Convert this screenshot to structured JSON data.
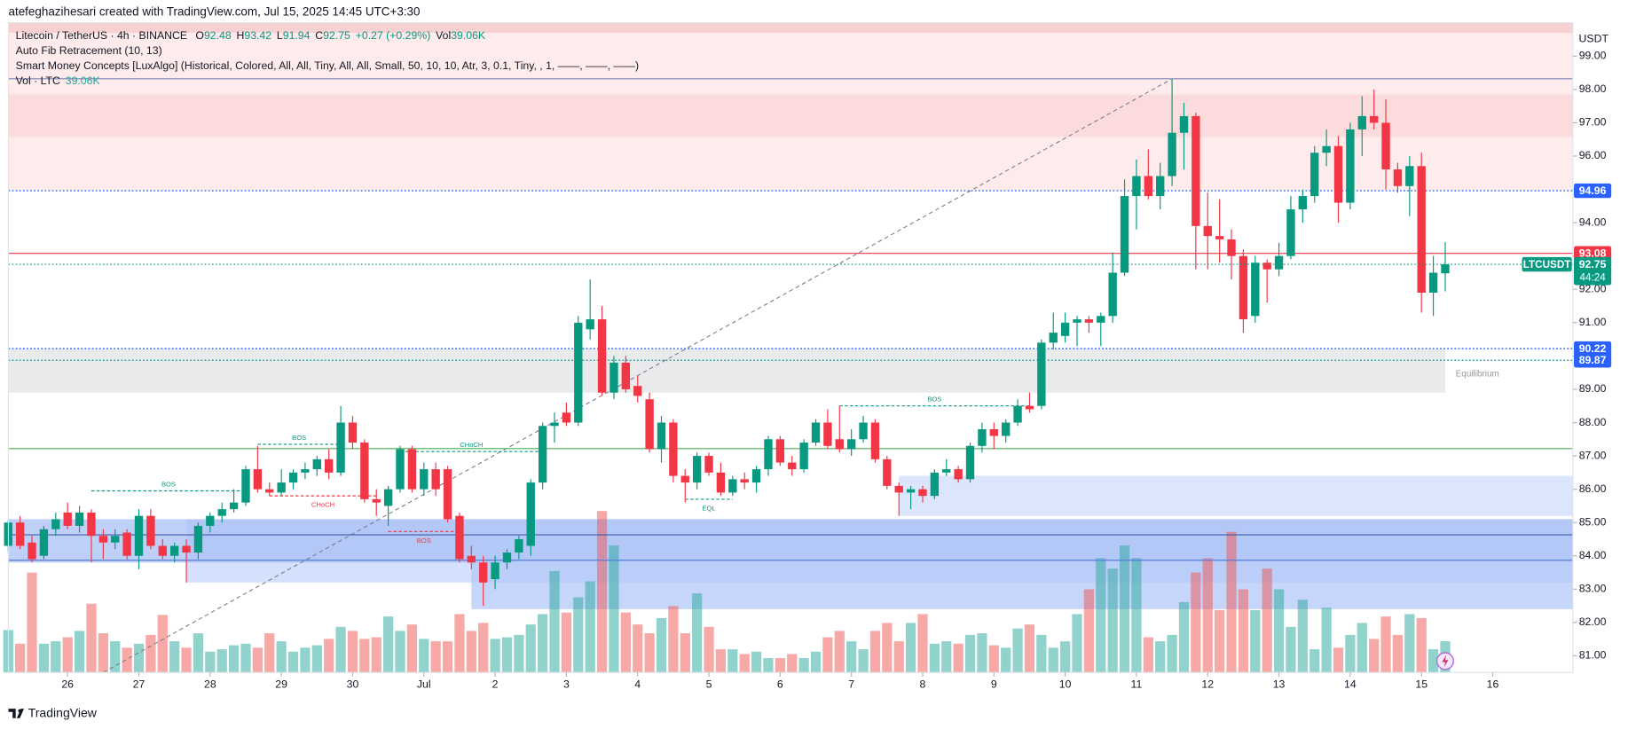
{
  "chart_data": {
    "type": "candlestick",
    "credit": "atefeghazihesari created with TradingView.com, Jul 15, 2025 14:45 UTC+3:30",
    "symbol_title": "Litecoin / TetherUS · 4h · BINANCE",
    "ohlc_letters": [
      "O",
      "H",
      "L",
      "C"
    ],
    "change": "+0.27 (+0.29%)",
    "vol_word": "Vol",
    "volume_label": "39.06K",
    "indicators": [
      "Auto Fib Retracement (10, 13)",
      "Smart Money Concepts [LuxAlgo] (Historical, Colored, All, All, Tiny, All, All, Small, 50, 10, 10, Atr, 3, 0.1, Tiny, , 1, ——, ——, ——)"
    ],
    "volume_legend": "Vol · LTC",
    "currency": "USDT",
    "symbol": "LTCUSDT",
    "countdown": "44:24",
    "footer": "TradingView",
    "up_color": "#089981",
    "down_color": "#f23645",
    "volume_up_color": "#26a69a",
    "volume_down_color": "#ef5350",
    "grid": false,
    "ylim": [
      80.5,
      100
    ],
    "yticks": [
      {
        "value": 81,
        "label": "81.00"
      },
      {
        "value": 82,
        "label": "82.00"
      },
      {
        "value": 83,
        "label": "83.00"
      },
      {
        "value": 84,
        "label": "84.00"
      },
      {
        "value": 85,
        "label": "85.00"
      },
      {
        "value": 86,
        "label": "86.00"
      },
      {
        "value": 87,
        "label": "87.00"
      },
      {
        "value": 88,
        "label": "88.00"
      },
      {
        "value": 89,
        "label": "89.00"
      },
      {
        "value": 90,
        "label": "90.00"
      },
      {
        "value": 91,
        "label": "91.00"
      },
      {
        "value": 92,
        "label": "92.00"
      },
      {
        "value": 93,
        "label": "93.00"
      },
      {
        "value": 94,
        "label": "94.00"
      },
      {
        "value": 95,
        "label": "95.00"
      },
      {
        "value": 96,
        "label": "96.00"
      },
      {
        "value": 97,
        "label": "97.00"
      },
      {
        "value": 98,
        "label": "98.00"
      },
      {
        "value": 99,
        "label": "99.00"
      }
    ],
    "xticks": [
      {
        "value": 5,
        "label": "26"
      },
      {
        "value": 11,
        "label": "27"
      },
      {
        "value": 17,
        "label": "28"
      },
      {
        "value": 23,
        "label": "29"
      },
      {
        "value": 29,
        "label": "30"
      },
      {
        "value": 35,
        "label": "Jul"
      },
      {
        "value": 41,
        "label": "2"
      },
      {
        "value": 47,
        "label": "3"
      },
      {
        "value": 53,
        "label": "4"
      },
      {
        "value": 59,
        "label": "5"
      },
      {
        "value": 65,
        "label": "6"
      },
      {
        "value": 71,
        "label": "7"
      },
      {
        "value": 77,
        "label": "8"
      },
      {
        "value": 83,
        "label": "9"
      },
      {
        "value": 89,
        "label": "10"
      },
      {
        "value": 95,
        "label": "11"
      },
      {
        "value": 101,
        "label": "12"
      },
      {
        "value": 107,
        "label": "13"
      },
      {
        "value": 113,
        "label": "14"
      },
      {
        "value": 119,
        "label": "15"
      },
      {
        "value": 125,
        "label": "16"
      }
    ],
    "open": [
      84.3,
      85.0,
      84.4,
      84.0,
      84.8,
      85.3,
      84.9,
      85.3,
      84.6,
      84.4,
      84.7,
      84.0,
      85.2,
      84.3,
      84.0,
      84.3,
      84.1,
      84.9,
      85.2,
      85.4,
      85.6,
      86.6,
      86.0,
      85.9,
      86.2,
      86.5,
      86.6,
      86.9,
      86.5,
      88.0,
      87.4,
      85.7,
      85.5,
      86.0,
      87.2,
      86.0,
      86.6,
      86.6,
      85.2,
      84.0,
      83.8,
      83.3,
      83.8,
      84.1,
      84.3,
      86.2,
      87.9,
      88.3,
      88.0,
      90.8,
      91.1,
      88.9,
      89.8,
      89.1,
      88.7,
      87.2,
      88.0,
      86.4,
      86.2,
      87.0,
      86.5,
      85.9,
      86.3,
      86.2,
      86.6,
      87.5,
      86.8,
      86.6,
      87.4,
      88.0,
      87.5,
      87.2,
      87.5,
      88.0,
      86.9,
      86.1,
      85.9,
      86.0,
      85.8,
      86.5,
      86.6,
      86.3,
      87.3,
      87.8,
      87.6,
      88.0,
      88.5,
      88.5,
      90.4,
      90.6,
      91.0,
      91.1,
      91.0,
      91.2,
      92.5,
      94.8,
      95.4,
      94.8,
      95.4,
      96.7,
      97.2,
      93.9,
      93.6,
      93.5,
      93.0,
      91.2,
      92.8,
      92.6,
      93.0,
      94.4,
      94.8,
      96.1,
      96.3,
      94.6,
      96.8,
      97.2,
      97.0,
      95.6,
      95.1,
      95.7,
      91.9,
      92.48
    ],
    "high": [
      85.1,
      85.2,
      84.6,
      84.9,
      85.3,
      85.6,
      85.5,
      85.4,
      84.8,
      84.8,
      84.8,
      85.4,
      85.4,
      84.5,
      84.4,
      84.5,
      85.0,
      85.3,
      85.6,
      86.0,
      86.7,
      87.3,
      86.2,
      86.6,
      86.6,
      86.8,
      87.0,
      87.2,
      88.5,
      88.2,
      87.5,
      86.0,
      86.1,
      87.3,
      87.3,
      86.8,
      86.8,
      86.7,
      85.3,
      84.3,
      84.0,
      84.0,
      84.2,
      84.6,
      86.3,
      88.0,
      88.3,
      88.6,
      91.2,
      92.3,
      91.5,
      90.0,
      90.0,
      89.4,
      88.9,
      88.2,
      88.1,
      86.6,
      87.1,
      87.1,
      86.8,
      86.4,
      86.5,
      86.7,
      87.6,
      87.6,
      87.0,
      87.5,
      88.1,
      88.4,
      88.5,
      87.8,
      88.2,
      88.1,
      87.0,
      86.2,
      86.1,
      86.1,
      86.6,
      86.9,
      86.7,
      87.4,
      88.0,
      88.0,
      88.1,
      88.7,
      88.9,
      90.5,
      91.3,
      91.3,
      91.2,
      91.2,
      91.3,
      93.1,
      95.3,
      95.9,
      96.2,
      95.8,
      98.3,
      97.6,
      97.3,
      94.9,
      94.7,
      93.8,
      93.2,
      93.0,
      92.9,
      93.4,
      94.8,
      95.0,
      96.3,
      96.8,
      96.6,
      97.0,
      97.8,
      98.0,
      97.7,
      95.8,
      96.0,
      96.1,
      93.0,
      93.42
    ],
    "low": [
      84.1,
      84.2,
      83.8,
      83.9,
      84.6,
      84.8,
      84.7,
      83.8,
      83.9,
      84.2,
      83.9,
      83.6,
      84.2,
      83.9,
      83.8,
      83.2,
      83.9,
      84.7,
      85.0,
      85.3,
      85.5,
      85.9,
      85.8,
      85.8,
      86.0,
      86.3,
      86.4,
      86.3,
      86.4,
      87.2,
      85.6,
      85.2,
      84.9,
      85.9,
      85.9,
      85.8,
      85.8,
      85.0,
      83.8,
      83.6,
      82.5,
      83.0,
      83.6,
      83.9,
      84.0,
      86.0,
      87.4,
      87.9,
      87.9,
      90.5,
      88.8,
      88.7,
      88.9,
      88.6,
      87.1,
      86.8,
      86.2,
      85.6,
      86.0,
      86.4,
      85.8,
      85.8,
      86.0,
      85.9,
      86.4,
      86.7,
      86.4,
      86.5,
      87.3,
      87.2,
      87.1,
      87.0,
      87.4,
      86.8,
      86.0,
      85.2,
      85.4,
      85.6,
      85.7,
      86.4,
      86.2,
      86.2,
      87.1,
      87.2,
      87.4,
      87.9,
      88.3,
      88.4,
      90.2,
      90.4,
      90.3,
      90.7,
      90.3,
      91.0,
      92.4,
      93.8,
      94.7,
      94.4,
      95.1,
      95.6,
      92.6,
      92.6,
      92.8,
      92.3,
      90.7,
      91.0,
      91.6,
      92.4,
      92.9,
      94.0,
      94.6,
      95.7,
      94.0,
      94.4,
      96.0,
      96.8,
      95.0,
      94.9,
      94.2,
      91.3,
      91.2,
      91.94
    ],
    "close": [
      85.0,
      84.3,
      83.9,
      84.8,
      85.1,
      84.9,
      85.3,
      84.6,
      84.4,
      84.6,
      84.0,
      85.2,
      84.3,
      84.0,
      84.3,
      84.1,
      84.9,
      85.2,
      85.4,
      85.6,
      86.6,
      86.0,
      85.9,
      86.2,
      86.5,
      86.6,
      86.9,
      86.5,
      88.0,
      87.4,
      85.7,
      85.6,
      86.0,
      87.2,
      86.0,
      86.6,
      86.0,
      85.1,
      83.9,
      83.8,
      83.2,
      83.8,
      84.1,
      84.5,
      86.2,
      87.9,
      88.0,
      88.0,
      91.0,
      91.1,
      88.9,
      89.8,
      89.0,
      88.8,
      87.2,
      88.0,
      86.4,
      86.2,
      87.0,
      86.5,
      85.9,
      86.3,
      86.2,
      86.6,
      87.5,
      86.8,
      86.6,
      87.4,
      88.0,
      87.3,
      87.2,
      87.5,
      88.0,
      86.9,
      86.1,
      85.9,
      86.0,
      85.8,
      86.5,
      86.6,
      86.3,
      87.3,
      87.8,
      87.6,
      88.0,
      88.5,
      88.4,
      90.4,
      90.7,
      91.0,
      91.1,
      91.0,
      91.2,
      92.5,
      94.8,
      95.4,
      94.8,
      95.4,
      96.7,
      97.2,
      93.9,
      93.6,
      93.5,
      93.0,
      91.1,
      92.8,
      92.6,
      93.0,
      94.4,
      94.8,
      96.1,
      96.3,
      94.6,
      96.8,
      97.2,
      97.0,
      95.6,
      95.1,
      95.7,
      91.9,
      92.5,
      92.75
    ],
    "volume": [
      53,
      36,
      125,
      36,
      39,
      44,
      52,
      86,
      49,
      39,
      31,
      36,
      47,
      72,
      39,
      31,
      49,
      26,
      29,
      34,
      36,
      31,
      49,
      39,
      26,
      31,
      34,
      42,
      57,
      52,
      42,
      44,
      70,
      52,
      60,
      42,
      39,
      39,
      73,
      52,
      62,
      42,
      44,
      47,
      60,
      73,
      127,
      75,
      94,
      114,
      202,
      159,
      75,
      60,
      49,
      68,
      83,
      49,
      99,
      57,
      29,
      29,
      23,
      26,
      18,
      18,
      23,
      18,
      26,
      44,
      52,
      39,
      29,
      52,
      62,
      39,
      62,
      73,
      36,
      39,
      36,
      47,
      49,
      34,
      31,
      55,
      60,
      47,
      31,
      39,
      73,
      104,
      143,
      130,
      159,
      143,
      44,
      39,
      47,
      88,
      125,
      143,
      78,
      176,
      104,
      78,
      130,
      104,
      57,
      91,
      29,
      81,
      31,
      47,
      62,
      42,
      70,
      47,
      73,
      68,
      29,
      39.06
    ],
    "zones": [
      {
        "top": 100,
        "bottom": 99.7,
        "start": 0,
        "extend": true,
        "color": "#f6c1c3"
      },
      {
        "top": 99.7,
        "bottom": 97.85,
        "start": 0,
        "extend": true,
        "color": "#fde4e5"
      },
      {
        "top": 97.85,
        "bottom": 96.57,
        "start": 0,
        "extend": true,
        "color": "#f9cfd0"
      },
      {
        "top": 96.57,
        "bottom": 94.98,
        "start": 0,
        "extend": true,
        "color": "#fde4e5"
      },
      {
        "top": 90.2,
        "bottom": 88.9,
        "start": 0,
        "end": 121,
        "extend": false,
        "color": "#e2e3e5",
        "label": "Equilibrium"
      },
      {
        "top": 86.4,
        "bottom": 85.2,
        "start": 75,
        "extend": true,
        "color": "#cfdcfb"
      },
      {
        "top": 85.1,
        "bottom": 83.2,
        "start": 15,
        "extend": true,
        "color": "#c6d6fb"
      },
      {
        "top": 85.1,
        "bottom": 83.8,
        "start": 0,
        "extend": true,
        "color": "#a9c0f6"
      },
      {
        "top": 84.0,
        "bottom": 82.4,
        "start": 39,
        "extend": true,
        "color": "#b3c8f8"
      }
    ],
    "price_lines": [
      {
        "price": 98.32,
        "color": "#7b85b8",
        "dotted": false,
        "tag": false
      },
      {
        "price": 94.96,
        "color": "#2962ff",
        "dotted": true,
        "tag": "#2962ff"
      },
      {
        "price": 93.08,
        "color": "#f23645",
        "dotted": false,
        "tag": "#f23645"
      },
      {
        "price": 90.22,
        "color": "#2962ff",
        "dotted": true,
        "tag": "#2962ff"
      },
      {
        "price": 89.87,
        "color": "#26a69a",
        "dotted": true,
        "tag": "#2962ff"
      },
      {
        "price": 87.22,
        "color": "#4caf50",
        "dotted": false,
        "tag": false
      },
      {
        "price": 84.63,
        "color": "#3a5ba8",
        "dotted": false,
        "tag": false
      },
      {
        "price": 83.87,
        "color": "#5b7fd6",
        "dotted": false,
        "tag": false
      }
    ],
    "structures": [
      {
        "label": "BOS",
        "color": "#089981",
        "price": 85.95,
        "from": 7,
        "to": 20,
        "below": false
      },
      {
        "label": "BOS",
        "color": "#089981",
        "price": 87.35,
        "from": 21,
        "to": 28,
        "below": false
      },
      {
        "label": "CHoCH",
        "color": "#f23645",
        "price": 85.8,
        "from": 22,
        "to": 31,
        "below": true
      },
      {
        "label": "CHoCH",
        "color": "#089981",
        "price": 87.13,
        "from": 33,
        "to": 45,
        "below": false
      },
      {
        "label": "BOS",
        "color": "#f23645",
        "price": 84.73,
        "from": 32,
        "to": 38,
        "below": true
      },
      {
        "label": "BOS",
        "color": "#089981",
        "price": 88.5,
        "from": 70,
        "to": 86,
        "below": false
      },
      {
        "label": "EQL",
        "color": "#089981",
        "price": 85.7,
        "from": 57,
        "to": 61,
        "below": true
      }
    ],
    "fib_line": {
      "x": [
        8,
        98
      ],
      "y": [
        80.5,
        98.32
      ]
    }
  }
}
